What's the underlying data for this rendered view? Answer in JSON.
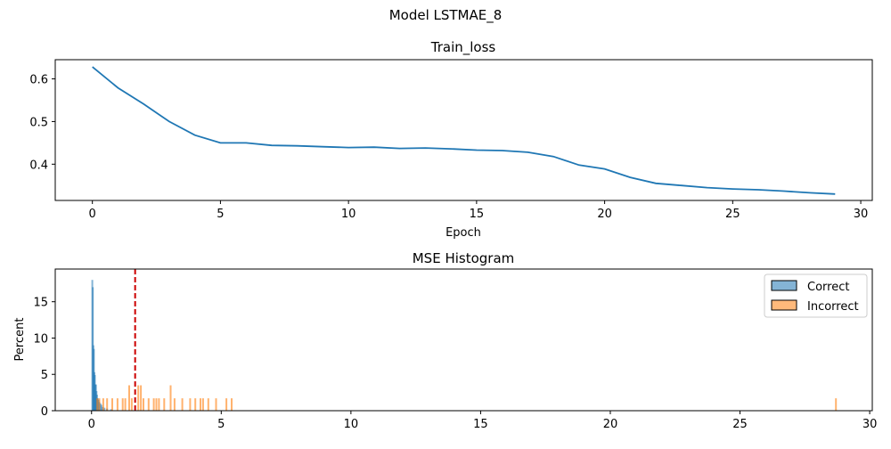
{
  "figure": {
    "suptitle": "Model LSTMAE_8"
  },
  "chart_data": [
    {
      "type": "line",
      "title": "Train_loss",
      "xlabel": "Epoch",
      "ylabel": "",
      "xlim": [
        -1.45,
        30.45
      ],
      "ylim": [
        0.315,
        0.645
      ],
      "xticks": [
        0,
        5,
        10,
        15,
        20,
        25,
        30
      ],
      "yticks": [
        0.4,
        0.5,
        0.6
      ],
      "ytick_labels": [
        "0.4",
        "0.5",
        "0.6"
      ],
      "grid": false,
      "series": [
        {
          "color": "#1f77b4",
          "x": [
            0,
            1,
            2,
            3,
            4,
            5,
            6,
            7,
            8,
            9,
            10,
            11,
            12,
            13,
            14,
            15,
            16,
            17,
            18,
            19,
            20,
            21,
            22,
            23,
            24,
            25,
            26,
            27,
            28,
            29
          ],
          "y": [
            0.628,
            0.579,
            0.541,
            0.5,
            0.468,
            0.45,
            0.45,
            0.444,
            0.443,
            0.441,
            0.439,
            0.44,
            0.437,
            0.438,
            0.436,
            0.433,
            0.432,
            0.428,
            0.418,
            0.398,
            0.389,
            0.369,
            0.355,
            0.35,
            0.345,
            0.342,
            0.34,
            0.337,
            0.333,
            0.33
          ]
        }
      ]
    },
    {
      "type": "histogram",
      "title": "MSE Histogram",
      "xlabel": "",
      "ylabel": "Percent",
      "xlim": [
        -1.4,
        30.1
      ],
      "ylim": [
        0,
        19.5
      ],
      "xticks": [
        0,
        5,
        10,
        15,
        20,
        25,
        30
      ],
      "yticks": [
        0,
        5,
        10,
        15
      ],
      "grid": false,
      "legend_position": "top-right",
      "threshold": {
        "value": 1.68,
        "color": "#cc0000",
        "style": "dashed"
      },
      "series": [
        {
          "name": "Correct",
          "color": "#1f77b4",
          "x": [
            0.03,
            0.05,
            0.07,
            0.09,
            0.11,
            0.13,
            0.15,
            0.17,
            0.19,
            0.21,
            0.24,
            0.27,
            0.3,
            0.34,
            0.38,
            0.43,
            0.5,
            0.6,
            0.75
          ],
          "y": [
            18.0,
            17.0,
            9.0,
            8.5,
            5.3,
            4.9,
            3.6,
            3.6,
            2.7,
            2.2,
            1.7,
            1.5,
            1.2,
            1.0,
            0.8,
            0.5,
            0.4,
            0.3,
            0.2
          ]
        },
        {
          "name": "Incorrect",
          "color": "#ff7f0e",
          "x": [
            0.22,
            0.3,
            0.45,
            0.6,
            0.8,
            1.0,
            1.2,
            1.3,
            1.45,
            1.55,
            1.8,
            1.9,
            2.0,
            2.2,
            2.4,
            2.5,
            2.6,
            2.8,
            3.05,
            3.2,
            3.5,
            3.8,
            4.0,
            4.2,
            4.3,
            4.5,
            4.8,
            5.2,
            5.4,
            28.7
          ],
          "y": [
            1.7,
            1.7,
            1.7,
            1.7,
            1.7,
            1.7,
            1.7,
            1.7,
            3.5,
            1.7,
            3.5,
            3.5,
            1.7,
            1.7,
            1.7,
            1.7,
            1.7,
            1.7,
            3.5,
            1.7,
            1.7,
            1.7,
            1.7,
            1.7,
            1.7,
            1.7,
            1.7,
            1.7,
            1.7,
            1.7
          ]
        }
      ]
    }
  ]
}
